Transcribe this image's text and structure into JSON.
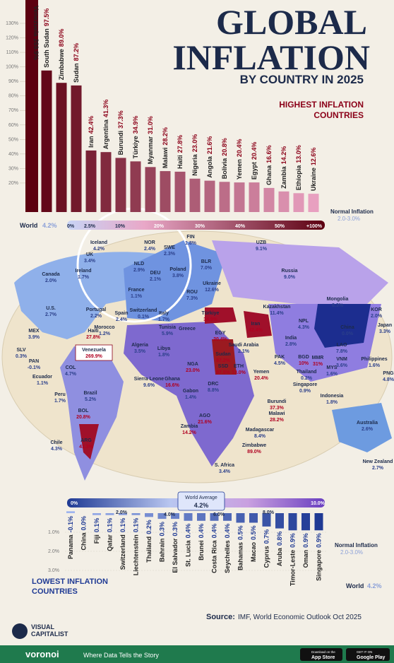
{
  "header": {
    "title_lines": [
      "GLOBAL",
      "INFLATION"
    ],
    "subtitle": "BY COUNTRY IN 2025"
  },
  "chart_data": [
    {
      "type": "bar",
      "title_lines": [
        "HIGHEST INFLATION",
        "COUNTRIES"
      ],
      "categories": [
        "Venezuela",
        "South Sudan",
        "Zimbabwe",
        "Sudan",
        "Iran",
        "Argentina",
        "Burundi",
        "Türkiye",
        "Myanmar",
        "Malawi",
        "Haiti",
        "Nigeria",
        "Angola",
        "Bolivia",
        "Yemen",
        "Egypt",
        "Ghana",
        "Zambia",
        "Ethiopia",
        "Ukraine"
      ],
      "values": [
        269.9,
        97.5,
        89.0,
        87.2,
        42.4,
        41.3,
        37.3,
        34.9,
        31.0,
        28.2,
        27.8,
        23.0,
        21.6,
        20.8,
        20.4,
        20.4,
        16.6,
        14.2,
        13.0,
        12.6
      ],
      "value_labels": [
        "269.9%",
        "97.5%",
        "89.0%",
        "87.2%",
        "42.4%",
        "41.3%",
        "37.3%",
        "34.9%",
        "31.0%",
        "28.2%",
        "27.8%",
        "23.0%",
        "21.6%",
        "20.8%",
        "20.4%",
        "20.4%",
        "16.6%",
        "14.2%",
        "13.0%",
        "12.6%"
      ],
      "colors": [
        "#5c0010",
        "#e8a0c0"
      ],
      "ylim": [
        0,
        130
      ],
      "yticks": [
        {
          "value": 20,
          "label": "20%"
        },
        {
          "value": 30,
          "label": "30%"
        },
        {
          "value": 40,
          "label": "40%"
        },
        {
          "value": 50,
          "label": "50%"
        },
        {
          "value": 60,
          "label": "60%"
        },
        {
          "value": 70,
          "label": "70%"
        },
        {
          "value": 80,
          "label": "80%"
        },
        {
          "value": 90,
          "label": "90%"
        },
        {
          "value": 100,
          "label": "100%"
        },
        {
          "value": 110,
          "label": "110%"
        },
        {
          "value": 120,
          "label": "120%"
        },
        {
          "value": 130,
          "label": "130%"
        }
      ],
      "scale_ticks": [
        "0%",
        "2.5%",
        "10%",
        "20%",
        "30%",
        "40%",
        "50%",
        "+100%"
      ],
      "world": {
        "name": "World",
        "value_label": "4.2%"
      },
      "normal": {
        "name": "Normal Inflation",
        "range": "2.0-3.0%"
      }
    },
    {
      "type": "bar",
      "title_lines": [
        "LOWEST INFLATION",
        "COUNTRIES"
      ],
      "categories": [
        "Panama",
        "China",
        "Fiji",
        "Qatar",
        "Switzerland",
        "Liechtenstein",
        "Thailand",
        "Bahrain",
        "El Salvador",
        "St. Lucia",
        "Brunei",
        "Costa Rica",
        "Seychelles",
        "Bahamas",
        "Macao",
        "Cyprus",
        "Aruba",
        "Timor-Leste",
        "Oman",
        "Singapore"
      ],
      "values": [
        -0.1,
        0.0,
        0.1,
        0.1,
        0.1,
        0.1,
        0.2,
        0.3,
        0.3,
        0.4,
        0.4,
        0.4,
        0.4,
        0.5,
        0.5,
        0.7,
        0.8,
        0.9,
        0.9,
        0.9
      ],
      "value_labels": [
        "-0.1%",
        "0.0%",
        "0.1%",
        "0.1%",
        "0.1%",
        "0.1%",
        "0.2%",
        "0.3%",
        "0.3%",
        "0.4%",
        "0.4%",
        "0.4%",
        "0.4%",
        "0.5%",
        "0.5%",
        "0.7%",
        "0.8%",
        "0.9%",
        "0.9%",
        "0.9%"
      ],
      "colors": [
        "#9fb4ef",
        "#1f3a94"
      ],
      "ylim": [
        0,
        3
      ],
      "yticks": [
        {
          "value": 1,
          "label": "1.0%"
        },
        {
          "value": 2,
          "label": "2.0%"
        },
        {
          "value": 3,
          "label": "3.0%"
        }
      ],
      "scale_ticks": [
        "0%",
        "2.0%",
        "4.0%",
        "6.0%",
        "8.0%",
        "10.0%"
      ],
      "world_average": {
        "name": "World Average",
        "value_label": "4.2%"
      },
      "world": {
        "name": "World",
        "value_label": "4.2%"
      },
      "normal": {
        "name": "Normal Inflation",
        "range": "2.0-3.0%"
      }
    }
  ],
  "map": {
    "labels": [
      {
        "name": "Canada",
        "value_label": "2.0%"
      },
      {
        "name": "U.S.",
        "value_label": "2.7%"
      },
      {
        "name": "MEX",
        "value_label": "3.9%"
      },
      {
        "name": "Haiti",
        "value_label": "27.8%"
      },
      {
        "name": "SLV",
        "value_label": "0.3%"
      },
      {
        "name": "PAN",
        "value_label": "-0.1%"
      },
      {
        "name": "Venezuela",
        "value_label": "269.9%"
      },
      {
        "name": "COL",
        "value_label": "4.7%"
      },
      {
        "name": "Ecuador",
        "value_label": "1.1%"
      },
      {
        "name": "Peru",
        "value_label": "1.7%"
      },
      {
        "name": "Brazil",
        "value_label": "5.2%"
      },
      {
        "name": "BOL",
        "value_label": "20.8%"
      },
      {
        "name": "ARG",
        "value_label": "41.3%"
      },
      {
        "name": "Chile",
        "value_label": "4.3%"
      },
      {
        "name": "Iceland",
        "value_label": "4.2%"
      },
      {
        "name": "UK",
        "value_label": "3.4%"
      },
      {
        "name": "Ireland",
        "value_label": "1.7%"
      },
      {
        "name": "NLD",
        "value_label": "2.9%"
      },
      {
        "name": "NOR",
        "value_label": "2.4%"
      },
      {
        "name": "SWE",
        "value_label": "2.3%"
      },
      {
        "name": "FIN",
        "value_label": "1.8%"
      },
      {
        "name": "DEU",
        "value_label": "2.1%"
      },
      {
        "name": "Poland",
        "value_label": "3.8%"
      },
      {
        "name": "France",
        "value_label": "1.1%"
      },
      {
        "name": "Portugal",
        "value_label": "2.2%"
      },
      {
        "name": "Spain",
        "value_label": "2.4%"
      },
      {
        "name": "Switzerland",
        "value_label": "0.1%"
      },
      {
        "name": "Italy",
        "value_label": "1.7%"
      },
      {
        "name": "BLR",
        "value_label": "7.0%"
      },
      {
        "name": "ROU",
        "value_label": "7.3%"
      },
      {
        "name": "Ukraine",
        "value_label": "12.6%"
      },
      {
        "name": "Russia",
        "value_label": "9.0%"
      },
      {
        "name": "Morocco",
        "value_label": "1.2%"
      },
      {
        "name": "Tunisia",
        "value_label": "5.9%"
      },
      {
        "name": "Greece"
      },
      {
        "name": "Algeria",
        "value_label": "3.5%"
      },
      {
        "name": "Libya",
        "value_label": "1.8%"
      },
      {
        "name": "Türkiye",
        "value_label": "34.9%"
      },
      {
        "name": "EGY",
        "value_label": "20.4%"
      },
      {
        "name": "Iran",
        "value_label": "42.4%"
      },
      {
        "name": "Saudi Arabia",
        "value_label": "2.1%"
      },
      {
        "name": "Yemen",
        "value_label": "20.4%"
      },
      {
        "name": "Sudan",
        "value_label": "87.2%"
      },
      {
        "name": "SSD",
        "value_label": "97.5%"
      },
      {
        "name": "ETH",
        "value_label": "13.0%"
      },
      {
        "name": "NGA",
        "value_label": "23.0%"
      },
      {
        "name": "Ghana",
        "value_label": "16.6%"
      },
      {
        "name": "Sierra Leone",
        "value_label": "9.6%"
      },
      {
        "name": "Gabon",
        "value_label": "1.4%"
      },
      {
        "name": "DRC",
        "value_label": "8.8%"
      },
      {
        "name": "AGO",
        "value_label": "21.6%"
      },
      {
        "name": "Zambia",
        "value_label": "14.2%"
      },
      {
        "name": "Burundi",
        "value_label": "37.3%"
      },
      {
        "name": "Malawi",
        "value_label": "28.2%"
      },
      {
        "name": "Zimbabwe",
        "value_label": "89.0%"
      },
      {
        "name": "Madagascar",
        "value_label": "8.4%"
      },
      {
        "name": "S. Africa",
        "value_label": "3.4%"
      },
      {
        "name": "Kazakhstan",
        "value_label": "11.4%"
      },
      {
        "name": "Mongolia",
        "value_label": "8.3%"
      },
      {
        "name": "UZB",
        "value_label": "9.1%"
      },
      {
        "name": "China",
        "value_label": "0.0%"
      },
      {
        "name": "KOR",
        "value_label": "2.0%"
      },
      {
        "name": "Japan",
        "value_label": "3.3%"
      },
      {
        "name": "India",
        "value_label": "2.8%"
      },
      {
        "name": "PAK",
        "value_label": "4.5%"
      },
      {
        "name": "NPL",
        "value_label": "4.3%"
      },
      {
        "name": "BGD",
        "value_label": "10%"
      },
      {
        "name": "MMR",
        "value_label": "31%"
      },
      {
        "name": "LAO",
        "value_label": "7.8%"
      },
      {
        "name": "VNM",
        "value_label": "3.6%"
      },
      {
        "name": "Thailand",
        "value_label": "0.2%"
      },
      {
        "name": "Philippines",
        "value_label": "1.6%"
      },
      {
        "name": "MYS",
        "value_label": "1.6%"
      },
      {
        "name": "Singapore",
        "value_label": "0.9%"
      },
      {
        "name": "Indonesia",
        "value_label": "1.8%"
      },
      {
        "name": "PNG",
        "value_label": "4.8%"
      },
      {
        "name": "Australia",
        "value_label": "2.6%"
      },
      {
        "name": "New Zealand",
        "value_label": "2.7%"
      }
    ]
  },
  "footer": {
    "brand": [
      "VISUAL",
      "CAPITALIST"
    ],
    "source_label": "Source:",
    "source": "IMF, World Economic Outlook Oct 2025",
    "voronoi": "voronoi",
    "tagline": "Where Data Tells the Story",
    "app_store": [
      "Download on the",
      "App Store"
    ],
    "google_play": [
      "GET IT ON",
      "Google Play"
    ]
  }
}
